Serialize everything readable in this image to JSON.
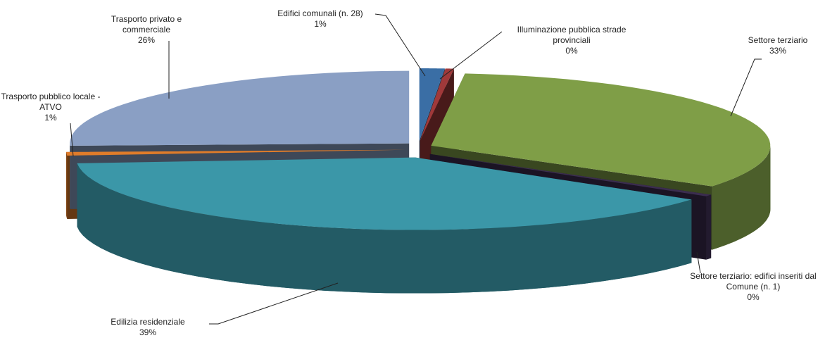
{
  "chart_data": {
    "type": "pie3d",
    "categories": [
      "Edifici comunali (n. 28)",
      "Illuminazione pubblica strade provinciali",
      "Settore terziario",
      "Settore terziario: edifici inseriti dal Comune (n. 1)",
      "Edilizia residenziale",
      "Trasporto pubblico locale - ATVO",
      "Trasporto privato e commerciale"
    ],
    "values": [
      1.2,
      0.4,
      33,
      0.4,
      39,
      0.8,
      25.6
    ],
    "value_labels": [
      "1%",
      "0%",
      "33%",
      "0%",
      "39%",
      "1%",
      "26%"
    ],
    "colors": [
      "#3a6ea5",
      "#a0393a",
      "#7f9e47",
      "#3b2d4f",
      "#3b97a8",
      "#e07c2a",
      "#8a9fc4"
    ]
  }
}
